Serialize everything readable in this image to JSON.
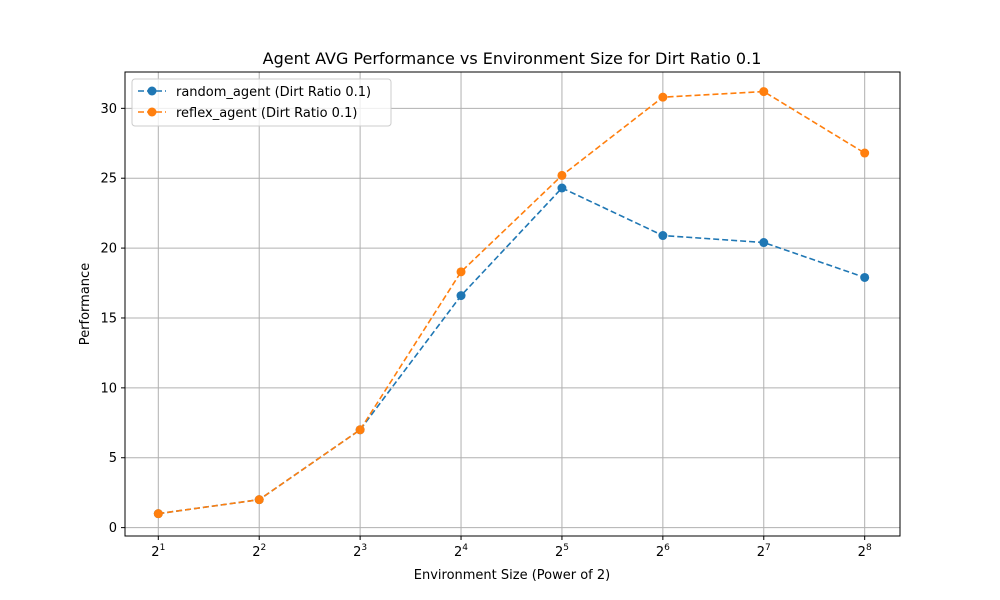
{
  "chart_data": {
    "type": "line",
    "title": "Agent AVG Performance vs Environment Size for Dirt Ratio 0.1",
    "xlabel": "Environment Size (Power of 2)",
    "ylabel": "Performance",
    "x_base": "2",
    "x": [
      1,
      2,
      3,
      4,
      5,
      6,
      7,
      8
    ],
    "x_tick_exponents": [
      "1",
      "2",
      "3",
      "4",
      "5",
      "6",
      "7",
      "8"
    ],
    "xlim": [
      0.67,
      8.35
    ],
    "ylim": [
      -0.6,
      32.6
    ],
    "y_ticks": [
      0,
      5,
      10,
      15,
      20,
      25,
      30
    ],
    "y_tick_labels": [
      "0",
      "5",
      "10",
      "15",
      "20",
      "25",
      "30"
    ],
    "grid": true,
    "legend_position": "top-left",
    "series": [
      {
        "name": "random_agent (Dirt Ratio 0.1)",
        "color": "#1f77b4",
        "values": [
          1.0,
          2.0,
          7.0,
          16.6,
          24.3,
          20.9,
          20.4,
          17.9
        ]
      },
      {
        "name": "reflex_agent (Dirt Ratio 0.1)",
        "color": "#ff7f0e",
        "values": [
          1.0,
          2.0,
          7.0,
          18.3,
          25.2,
          30.8,
          31.2,
          26.8
        ]
      }
    ]
  }
}
